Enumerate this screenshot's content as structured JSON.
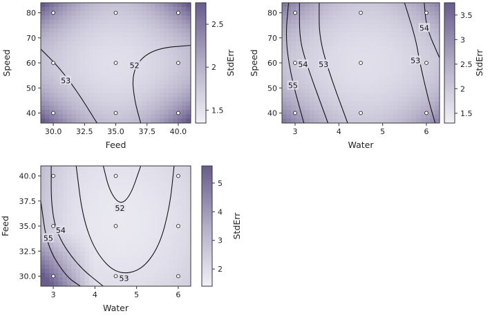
{
  "chart_data": [
    {
      "type": "heatmap",
      "subtype": "contour",
      "xlabel": "Feed",
      "ylabel": "Speed",
      "xlim": [
        29,
        41
      ],
      "ylim": [
        36,
        84
      ],
      "xticks": [
        "30.0",
        "32.5",
        "35.0",
        "37.5",
        "40.0"
      ],
      "yticks": [
        "40",
        "50",
        "60",
        "70",
        "80"
      ],
      "colorbar_label": "StdErr",
      "colorbar_ticks": [
        "1.5",
        "2",
        "2.5"
      ],
      "colorbar_range": [
        1.35,
        2.75
      ],
      "contours": [
        {
          "label": "53",
          "path": [
            [
              29,
              65.5
            ],
            [
              30.5,
              58
            ],
            [
              32,
              48
            ],
            [
              33.5,
              36
            ]
          ],
          "label_at": [
            31.0,
            53
          ]
        },
        {
          "label": "52",
          "path": [
            [
              41,
              67
            ],
            [
              38.5,
              66
            ],
            [
              37,
              62
            ],
            [
              36.3,
              55
            ],
            [
              36.5,
              45
            ],
            [
              37,
              36
            ]
          ],
          "label_at": [
            36.5,
            59
          ]
        }
      ],
      "design_points": [
        [
          30,
          40
        ],
        [
          30,
          60
        ],
        [
          30,
          80
        ],
        [
          35,
          40
        ],
        [
          35,
          60
        ],
        [
          35,
          80
        ],
        [
          40,
          40
        ],
        [
          40,
          60
        ],
        [
          40,
          80
        ]
      ],
      "stderr_field": {
        "mode": "quad",
        "center": [
          35,
          60
        ],
        "span": [
          11,
          42
        ],
        "min": 1.35,
        "max": 2.75
      }
    },
    {
      "type": "heatmap",
      "subtype": "contour",
      "xlabel": "Water",
      "ylabel": "Speed",
      "xlim": [
        2.7,
        6.3
      ],
      "ylim": [
        36,
        84
      ],
      "xticks": [
        "3",
        "4",
        "5",
        "6"
      ],
      "yticks": [
        "40",
        "50",
        "60",
        "70",
        "80"
      ],
      "colorbar_label": "StdErr",
      "colorbar_ticks": [
        "1.5",
        "2",
        "2.5",
        "3",
        "3.5"
      ],
      "colorbar_range": [
        1.3,
        3.75
      ],
      "contours": [
        {
          "label": "55",
          "path": [
            [
              2.85,
              84
            ],
            [
              2.78,
              70
            ],
            [
              2.9,
              55
            ],
            [
              3.2,
              36
            ]
          ],
          "label_at": [
            2.95,
            51
          ]
        },
        {
          "label": "54",
          "path": [
            [
              3.1,
              84
            ],
            [
              3.1,
              70
            ],
            [
              3.25,
              60
            ],
            [
              3.75,
              36
            ]
          ],
          "label_at": [
            3.18,
            59.5
          ]
        },
        {
          "label": "53",
          "path": [
            [
              3.55,
              84
            ],
            [
              3.55,
              70
            ],
            [
              3.8,
              55
            ],
            [
              4.2,
              36
            ]
          ],
          "label_at": [
            3.65,
            59.5
          ]
        },
        {
          "label": "53",
          "path": [
            [
              5.5,
              84
            ],
            [
              5.75,
              70
            ],
            [
              5.85,
              60
            ],
            [
              6.05,
              45
            ],
            [
              6.2,
              36
            ]
          ],
          "label_at": [
            5.75,
            61
          ]
        },
        {
          "label": "54",
          "path": [
            [
              5.95,
              84
            ],
            [
              6.0,
              74
            ],
            [
              6.3,
              62
            ]
          ],
          "label_at": [
            5.95,
            74
          ]
        }
      ],
      "design_points": [
        [
          3,
          40
        ],
        [
          3,
          60
        ],
        [
          3,
          80
        ],
        [
          4.5,
          40
        ],
        [
          4.5,
          60
        ],
        [
          4.5,
          80
        ],
        [
          6,
          40
        ],
        [
          6,
          60
        ],
        [
          6,
          80
        ]
      ],
      "stderr_field": {
        "mode": "quad",
        "center": [
          4.6,
          60
        ],
        "span": [
          3.6,
          48
        ],
        "min": 1.3,
        "max": 3.75
      }
    },
    {
      "type": "heatmap",
      "subtype": "contour",
      "xlabel": "Water",
      "ylabel": "Feed",
      "xlim": [
        2.7,
        6.3
      ],
      "ylim": [
        29,
        41
      ],
      "xticks": [
        "3",
        "4",
        "5",
        "6"
      ],
      "yticks": [
        "30.0",
        "32.5",
        "35.0",
        "37.5",
        "40.0"
      ],
      "colorbar_label": "StdErr",
      "colorbar_ticks": [
        "2",
        "3",
        "4",
        "5"
      ],
      "colorbar_range": [
        1.4,
        5.6
      ],
      "contours": [
        {
          "label": "55",
          "path": [
            [
              2.7,
              37.5
            ],
            [
              2.85,
              33
            ],
            [
              3.3,
              30
            ],
            [
              3.65,
              29
            ]
          ],
          "label_at": [
            2.88,
            33.8
          ]
        },
        {
          "label": "54",
          "path": [
            [
              2.95,
              41
            ],
            [
              2.95,
              37
            ],
            [
              3.1,
              34
            ],
            [
              3.6,
              31
            ],
            [
              4.2,
              29
            ]
          ],
          "label_at": [
            3.18,
            34.6
          ]
        },
        {
          "label": "53",
          "path": [
            [
              3.55,
              41
            ],
            [
              3.7,
              36
            ],
            [
              4.0,
              32.5
            ],
            [
              4.5,
              30.2
            ],
            [
              5.1,
              30.5
            ],
            [
              5.55,
              33
            ],
            [
              5.8,
              37
            ],
            [
              5.9,
              41
            ]
          ],
          "label_at": [
            4.7,
            29.8
          ]
        },
        {
          "label": "52",
          "path": [
            [
              4.2,
              41
            ],
            [
              4.35,
              38.5
            ],
            [
              4.6,
              37.1
            ],
            [
              4.85,
              38
            ],
            [
              5.1,
              41
            ]
          ],
          "label_at": [
            4.6,
            36.8
          ]
        }
      ],
      "design_points": [
        [
          3,
          30
        ],
        [
          3,
          35
        ],
        [
          3,
          40
        ],
        [
          4.5,
          30
        ],
        [
          4.5,
          35
        ],
        [
          4.5,
          40
        ],
        [
          6,
          30
        ],
        [
          6,
          35
        ],
        [
          6,
          40
        ]
      ],
      "stderr_field": {
        "mode": "quad-corner",
        "center": [
          4.6,
          35.5
        ],
        "span": [
          3.6,
          12
        ],
        "min": 1.4,
        "max": 5.6
      }
    }
  ]
}
